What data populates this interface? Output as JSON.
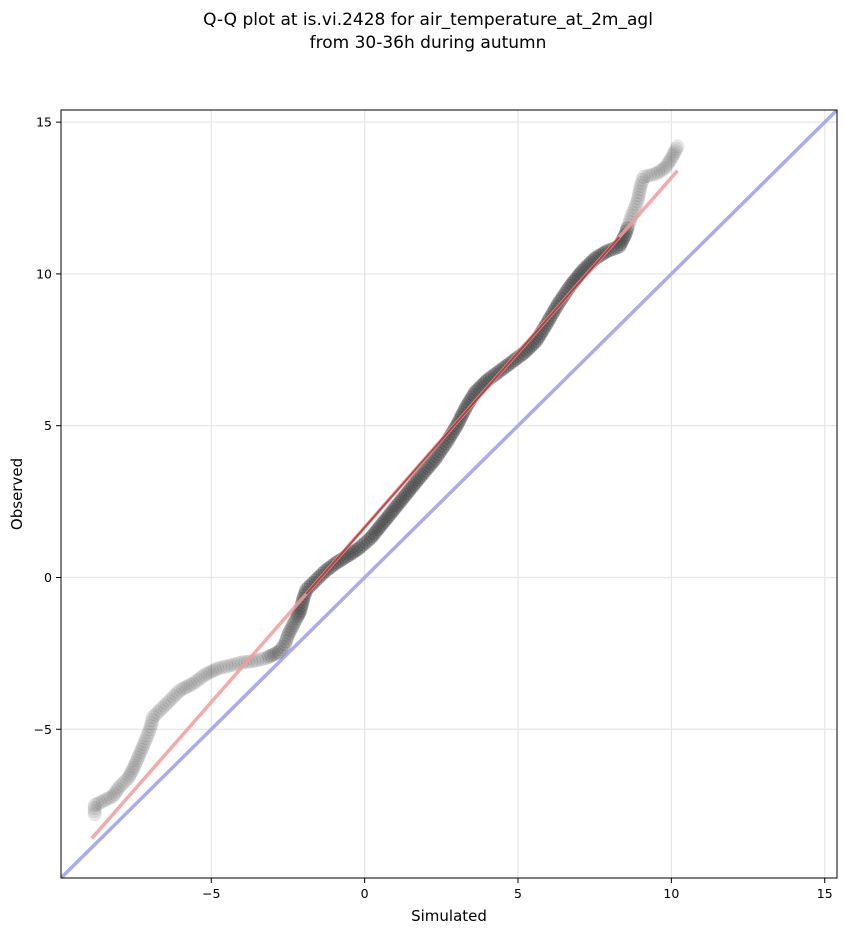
{
  "chart_data": {
    "type": "scatter",
    "title": "Q-Q plot at is.vi.2428 for air_temperature_at_2m_agl",
    "subtitle": "from 30-36h during autumn",
    "xlabel": "Simulated",
    "ylabel": "Observed",
    "xlim": [
      -9.9,
      15.4
    ],
    "ylim": [
      -9.9,
      15.4
    ],
    "xticks": [
      -5,
      0,
      5,
      10,
      15
    ],
    "yticks": [
      -5,
      0,
      5,
      10,
      15
    ],
    "xtick_labels": [
      "−5",
      "0",
      "5",
      "10",
      "15"
    ],
    "ytick_labels": [
      "−5",
      "0",
      "5",
      "10",
      "15"
    ],
    "grid": true,
    "colors": {
      "points": "#333333",
      "fit_line": "#f59a9a",
      "fit_line_central": "#8b0000",
      "identity_line": "#a9acf0",
      "grid": "#e6e6e6"
    },
    "quantile_curve": [
      [
        -8.8,
        -7.8
      ],
      [
        -8.8,
        -7.5
      ],
      [
        -8.2,
        -7.2
      ],
      [
        -8.0,
        -6.9
      ],
      [
        -7.7,
        -6.6
      ],
      [
        -7.5,
        -6.2
      ],
      [
        -7.2,
        -5.5
      ],
      [
        -7.0,
        -5.0
      ],
      [
        -6.9,
        -4.6
      ],
      [
        -6.6,
        -4.3
      ],
      [
        -6.3,
        -4.0
      ],
      [
        -6.0,
        -3.7
      ],
      [
        -5.6,
        -3.5
      ],
      [
        -5.2,
        -3.2
      ],
      [
        -4.8,
        -3.0
      ],
      [
        -4.4,
        -2.9
      ],
      [
        -4.0,
        -2.8
      ],
      [
        -3.6,
        -2.75
      ],
      [
        -3.2,
        -2.65
      ],
      [
        -2.8,
        -2.45
      ],
      [
        -2.6,
        -2.2
      ],
      [
        -2.5,
        -1.9
      ],
      [
        -2.3,
        -1.5
      ],
      [
        -2.1,
        -1.1
      ],
      [
        -2.0,
        -0.7
      ],
      [
        -1.9,
        -0.4
      ],
      [
        -1.6,
        -0.1
      ],
      [
        -1.3,
        0.2
      ],
      [
        -0.9,
        0.5
      ],
      [
        -0.5,
        0.75
      ],
      [
        -0.2,
        0.95
      ],
      [
        0.2,
        1.3
      ],
      [
        0.6,
        1.8
      ],
      [
        1.0,
        2.3
      ],
      [
        1.4,
        2.8
      ],
      [
        1.8,
        3.3
      ],
      [
        2.3,
        3.9
      ],
      [
        2.7,
        4.5
      ],
      [
        3.0,
        5.0
      ],
      [
        3.3,
        5.6
      ],
      [
        3.6,
        6.1
      ],
      [
        4.0,
        6.5
      ],
      [
        4.4,
        6.8
      ],
      [
        4.8,
        7.1
      ],
      [
        5.2,
        7.4
      ],
      [
        5.6,
        7.8
      ],
      [
        5.9,
        8.3
      ],
      [
        6.3,
        9.0
      ],
      [
        6.7,
        9.6
      ],
      [
        7.1,
        10.1
      ],
      [
        7.5,
        10.5
      ],
      [
        7.9,
        10.75
      ],
      [
        8.3,
        10.9
      ],
      [
        8.5,
        11.3
      ],
      [
        8.7,
        11.9
      ],
      [
        8.9,
        12.4
      ],
      [
        9.0,
        12.9
      ],
      [
        9.1,
        13.2
      ],
      [
        9.5,
        13.3
      ],
      [
        9.8,
        13.5
      ],
      [
        10.0,
        13.8
      ],
      [
        10.2,
        14.2
      ]
    ],
    "fit_line": {
      "x": [
        -8.9,
        10.2
      ],
      "y": [
        -8.6,
        13.4
      ]
    },
    "identity_line": {
      "x": [
        -9.9,
        15.4
      ],
      "y": [
        -9.9,
        15.4
      ]
    }
  }
}
